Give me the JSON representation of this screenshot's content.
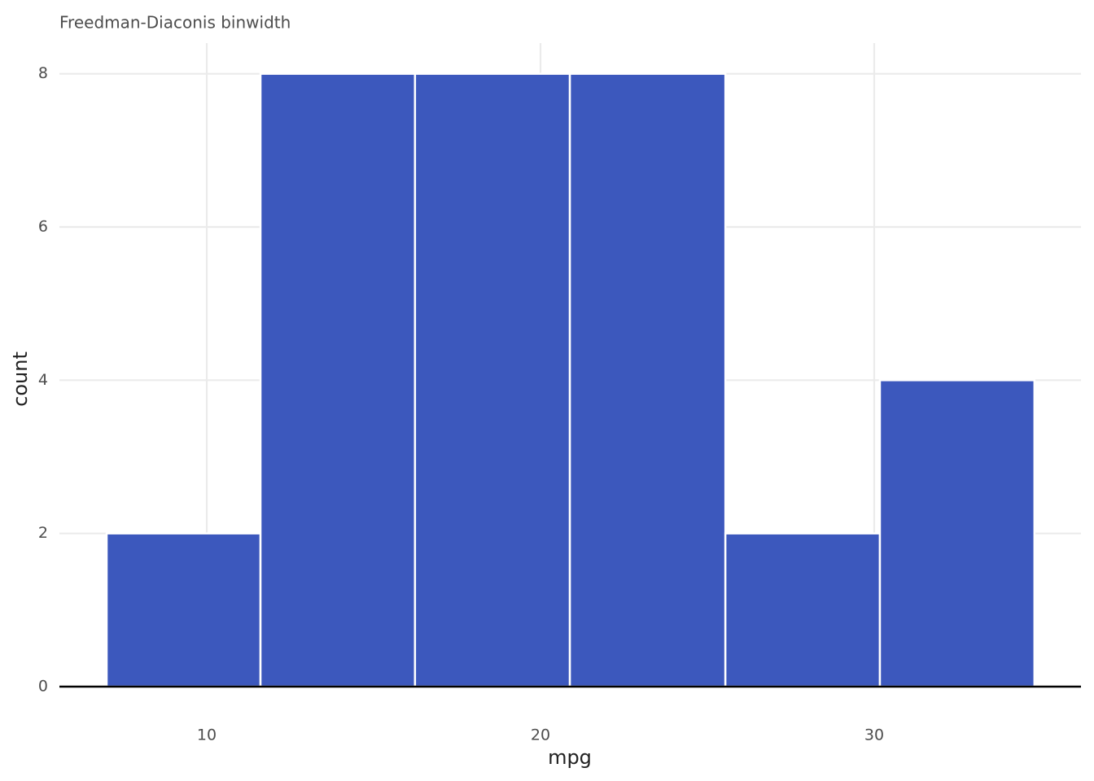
{
  "chart_data": {
    "type": "histogram",
    "title": "Freedman-Diaconis binwidth",
    "x_label": "mpg",
    "y_label": "count",
    "bins": [
      7.0,
      11.61,
      16.24,
      20.88,
      25.54,
      30.17,
      34.8
    ],
    "values": [
      2,
      8,
      8,
      8,
      2,
      4
    ],
    "color": "#3c58bd",
    "xlim": [
      5.585,
      36.195
    ],
    "xticks": [
      10,
      20,
      30
    ],
    "ylim": [
      0,
      8.4
    ],
    "yticks": [
      0,
      2,
      4,
      6,
      8
    ],
    "grid": true
  }
}
